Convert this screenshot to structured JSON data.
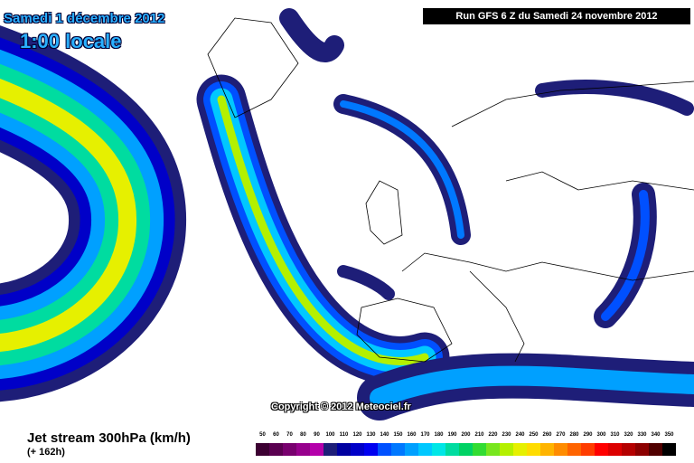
{
  "header": {
    "date": "Samedi 1 décembre 2012",
    "time": "1:00 locale",
    "run": "Run GFS 6 Z du Samedi 24 novembre 2012"
  },
  "map": {
    "copyright": "Copyright © 2012 Meteociel.fr"
  },
  "footer": {
    "title": "Jet stream 300hPa (km/h)",
    "lead": "(+ 162h)"
  },
  "legend": {
    "labels": [
      "50",
      "60",
      "70",
      "80",
      "90",
      "100",
      "110",
      "120",
      "130",
      "140",
      "150",
      "160",
      "170",
      "180",
      "190",
      "200",
      "210",
      "220",
      "230",
      "240",
      "250",
      "260",
      "270",
      "280",
      "290",
      "300",
      "310",
      "320",
      "330",
      "340",
      "350"
    ],
    "colors": [
      "#3c0032",
      "#5a0050",
      "#78006e",
      "#96008c",
      "#b400aa",
      "#1e1e78",
      "#0000a0",
      "#0000c8",
      "#0000f0",
      "#0050ff",
      "#0078ff",
      "#00a0ff",
      "#00c8ff",
      "#00e6e6",
      "#00dca0",
      "#00d264",
      "#32dc32",
      "#78e61e",
      "#b4f000",
      "#e6f000",
      "#ffdc00",
      "#ffb400",
      "#ff8c00",
      "#ff6400",
      "#ff3c00",
      "#ff0000",
      "#dc0000",
      "#b40000",
      "#8c0000",
      "#500000",
      "#000000"
    ]
  }
}
